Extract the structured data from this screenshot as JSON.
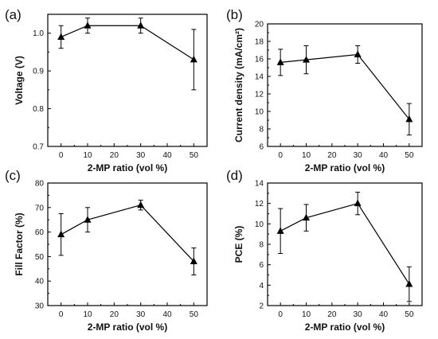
{
  "chart_data": [
    {
      "panel": "(a)",
      "type": "line",
      "xlabel": "2-MP ratio (vol %)",
      "ylabel": "Voltage (V)",
      "xlim": [
        -5,
        55
      ],
      "ylim": [
        0.7,
        1.05
      ],
      "x_ticks": [
        "0",
        "10",
        "20",
        "30",
        "40",
        "50"
      ],
      "y_ticks": [
        "0.7",
        "0.8",
        "0.9",
        "1.0"
      ],
      "grid": false,
      "marker": "triangle",
      "series": [
        {
          "x": [
            0,
            10,
            30,
            50
          ],
          "y": [
            0.99,
            1.02,
            1.02,
            0.93
          ],
          "error": [
            0.03,
            0.02,
            0.02,
            0.08
          ]
        }
      ]
    },
    {
      "panel": "(b)",
      "type": "line",
      "xlabel": "2-MP ratio (vol %)",
      "ylabel": "Current density (mA/cm²)",
      "xlim": [
        -5,
        55
      ],
      "ylim": [
        6,
        20
      ],
      "x_ticks": [
        "0",
        "10",
        "20",
        "30",
        "40",
        "50"
      ],
      "y_ticks": [
        "6",
        "8",
        "10",
        "12",
        "14",
        "16",
        "18",
        "20"
      ],
      "grid": false,
      "marker": "triangle",
      "series": [
        {
          "x": [
            0,
            10,
            30,
            50
          ],
          "y": [
            15.6,
            15.9,
            16.5,
            9.1
          ],
          "error": [
            1.5,
            1.6,
            1.0,
            1.8
          ]
        }
      ]
    },
    {
      "panel": "(c)",
      "type": "line",
      "xlabel": "2-MP ratio (vol %)",
      "ylabel": "Fill Factor (%)",
      "xlim": [
        -5,
        55
      ],
      "ylim": [
        30,
        80
      ],
      "x_ticks": [
        "0",
        "10",
        "20",
        "30",
        "40",
        "50"
      ],
      "y_ticks": [
        "30",
        "40",
        "50",
        "60",
        "70",
        "80"
      ],
      "grid": false,
      "marker": "triangle",
      "series": [
        {
          "x": [
            0,
            10,
            30,
            50
          ],
          "y": [
            59,
            65,
            71,
            48
          ],
          "error": [
            8.5,
            5,
            2,
            5.5
          ]
        }
      ]
    },
    {
      "panel": "(d)",
      "type": "line",
      "xlabel": "2-MP ratio (vol %)",
      "ylabel": "PCE (%)",
      "xlim": [
        -5,
        55
      ],
      "ylim": [
        2,
        14
      ],
      "x_ticks": [
        "0",
        "10",
        "20",
        "30",
        "40",
        "50"
      ],
      "y_ticks": [
        "2",
        "4",
        "6",
        "8",
        "10",
        "12",
        "14"
      ],
      "grid": false,
      "marker": "triangle",
      "series": [
        {
          "x": [
            0,
            10,
            30,
            50
          ],
          "y": [
            9.3,
            10.6,
            12.0,
            4.1
          ],
          "error": [
            2.2,
            1.3,
            1.1,
            1.7
          ]
        }
      ]
    }
  ]
}
